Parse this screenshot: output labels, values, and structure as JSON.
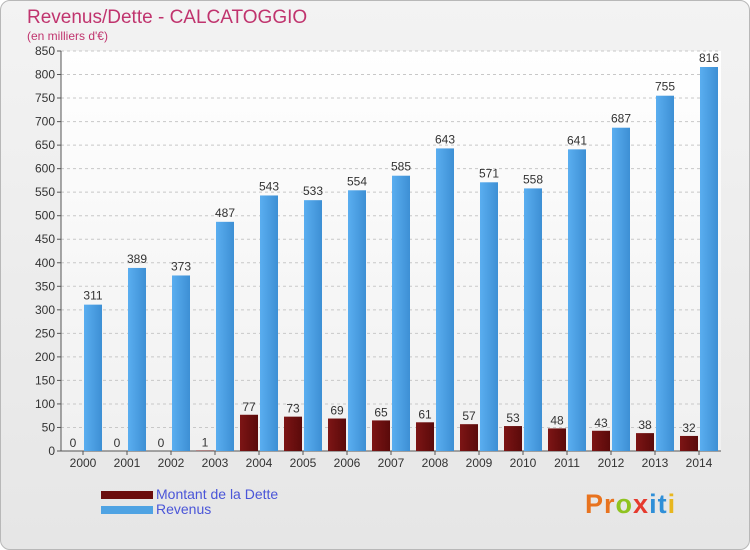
{
  "header": {
    "title": "Revenus/Dette - CALCATOGGIO",
    "subtitle": "(en milliers d'€)"
  },
  "chart_data": {
    "type": "bar",
    "categories": [
      "2000",
      "2001",
      "2002",
      "2003",
      "2004",
      "2005",
      "2006",
      "2007",
      "2008",
      "2009",
      "2010",
      "2011",
      "2012",
      "2013",
      "2014"
    ],
    "series": [
      {
        "name": "Montant de la Dette",
        "color": "#6b0d0d",
        "values": [
          0,
          0,
          0,
          1,
          77,
          73,
          69,
          65,
          61,
          57,
          53,
          48,
          43,
          38,
          32
        ]
      },
      {
        "name": "Revenus",
        "color": "#4fa3e3",
        "values": [
          311,
          389,
          373,
          487,
          543,
          533,
          554,
          585,
          643,
          571,
          558,
          641,
          687,
          755,
          816
        ]
      }
    ],
    "ylim": [
      0,
      850
    ],
    "yticks": [
      0,
      50,
      100,
      150,
      200,
      250,
      300,
      350,
      400,
      450,
      500,
      550,
      600,
      650,
      700,
      750,
      800,
      850
    ],
    "grid": "horizontal-dashed",
    "legend": "bottom-left"
  },
  "logo": {
    "text": "Proxiti",
    "letters": [
      {
        "ch": "P",
        "color": "#e8731f"
      },
      {
        "ch": "r",
        "color": "#e8731f"
      },
      {
        "ch": "o",
        "color": "#8fc320"
      },
      {
        "ch": "x",
        "color": "#e63a2e"
      },
      {
        "ch": "i",
        "color": "#2f8fd8"
      },
      {
        "ch": "t",
        "color": "#2f8fd8"
      },
      {
        "ch": "i",
        "color": "#e8b71f"
      }
    ]
  }
}
